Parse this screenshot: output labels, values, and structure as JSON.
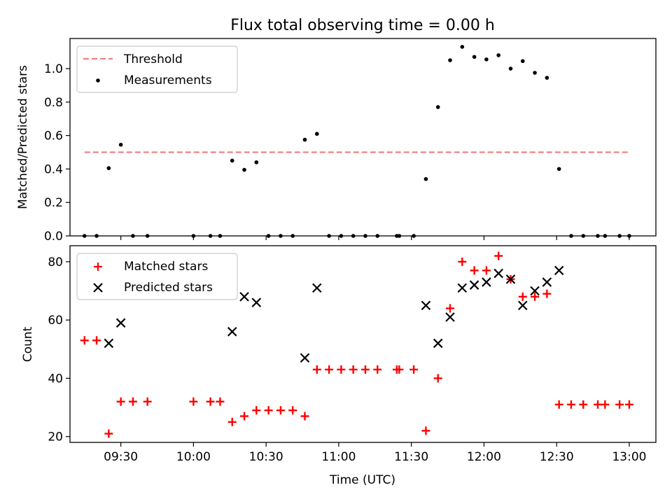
{
  "chart_data": [
    {
      "type": "scatter",
      "title": "Flux total observing time = 0.00 h",
      "xlabel": "",
      "ylabel": "Matched/Predicted stars",
      "xlim": [
        "09:09",
        "13:11"
      ],
      "ylim": [
        0.0,
        1.18
      ],
      "yticks": [
        "0.0",
        "0.2",
        "0.4",
        "0.6",
        "0.8",
        "1.0"
      ],
      "legend": {
        "position": "upper-left",
        "entries": [
          "Threshold",
          "Measurements"
        ]
      },
      "threshold": {
        "name": "Threshold",
        "color": "#f08080",
        "style": "dashed",
        "y": 0.5,
        "x_start": "09:15",
        "x_end": "13:00"
      },
      "series": [
        {
          "name": "Measurements",
          "color": "#000000",
          "marker": "dot",
          "points": [
            [
              "09:15",
              0.0
            ],
            [
              "09:20",
              0.0
            ],
            [
              "09:25",
              0.405
            ],
            [
              "09:30",
              0.545
            ],
            [
              "09:35",
              0.0
            ],
            [
              "09:41",
              0.0
            ],
            [
              "10:00",
              0.0
            ],
            [
              "10:07",
              0.0
            ],
            [
              "10:11",
              0.0
            ],
            [
              "10:16",
              0.45
            ],
            [
              "10:21",
              0.395
            ],
            [
              "10:26",
              0.44
            ],
            [
              "10:31",
              0.0
            ],
            [
              "10:36",
              0.0
            ],
            [
              "10:41",
              0.0
            ],
            [
              "10:46",
              0.575
            ],
            [
              "10:51",
              0.61
            ],
            [
              "10:56",
              0.0
            ],
            [
              "11:01",
              0.0
            ],
            [
              "11:06",
              0.0
            ],
            [
              "11:11",
              0.0
            ],
            [
              "11:16",
              0.0
            ],
            [
              "11:24",
              0.0
            ],
            [
              "11:25",
              0.0
            ],
            [
              "11:31",
              0.0
            ],
            [
              "11:36",
              0.34
            ],
            [
              "11:41",
              0.77
            ],
            [
              "11:46",
              1.05
            ],
            [
              "11:51",
              1.13
            ],
            [
              "11:56",
              1.07
            ],
            [
              "12:01",
              1.055
            ],
            [
              "12:06",
              1.08
            ],
            [
              "12:11",
              1.0
            ],
            [
              "12:16",
              1.045
            ],
            [
              "12:21",
              0.975
            ],
            [
              "12:26",
              0.945
            ],
            [
              "12:31",
              0.4
            ],
            [
              "12:36",
              0.0
            ],
            [
              "12:41",
              0.0
            ],
            [
              "12:47",
              0.0
            ],
            [
              "12:50",
              0.0
            ],
            [
              "12:56",
              0.0
            ],
            [
              "13:00",
              0.0
            ]
          ]
        }
      ]
    },
    {
      "type": "scatter",
      "title": "",
      "xlabel": "Time (UTC)",
      "ylabel": "Count",
      "xlim": [
        "09:09",
        "13:11"
      ],
      "ylim": [
        18,
        85.5
      ],
      "yticks": [
        "20",
        "40",
        "60",
        "80"
      ],
      "xticks": [
        "09:30",
        "10:00",
        "10:30",
        "11:00",
        "11:30",
        "12:00",
        "12:30",
        "13:00"
      ],
      "legend": {
        "position": "upper-left",
        "entries": [
          "Matched stars",
          "Predicted stars"
        ]
      },
      "series": [
        {
          "name": "Matched stars",
          "color": "#ff0000",
          "marker": "plus",
          "points": [
            [
              "09:15",
              53
            ],
            [
              "09:20",
              53
            ],
            [
              "09:25",
              21
            ],
            [
              "09:30",
              32
            ],
            [
              "09:35",
              32
            ],
            [
              "09:41",
              32
            ],
            [
              "10:00",
              32
            ],
            [
              "10:07",
              32
            ],
            [
              "10:11",
              32
            ],
            [
              "10:16",
              25
            ],
            [
              "10:21",
              27
            ],
            [
              "10:26",
              29
            ],
            [
              "10:31",
              29
            ],
            [
              "10:36",
              29
            ],
            [
              "10:41",
              29
            ],
            [
              "10:46",
              27
            ],
            [
              "10:51",
              43
            ],
            [
              "10:56",
              43
            ],
            [
              "11:01",
              43
            ],
            [
              "11:06",
              43
            ],
            [
              "11:11",
              43
            ],
            [
              "11:16",
              43
            ],
            [
              "11:24",
              43
            ],
            [
              "11:25",
              43
            ],
            [
              "11:31",
              43
            ],
            [
              "11:36",
              22
            ],
            [
              "11:41",
              40
            ],
            [
              "11:46",
              64
            ],
            [
              "11:51",
              80
            ],
            [
              "11:56",
              77
            ],
            [
              "12:01",
              77
            ],
            [
              "12:06",
              82
            ],
            [
              "12:11",
              74
            ],
            [
              "12:16",
              68
            ],
            [
              "12:21",
              68
            ],
            [
              "12:26",
              69
            ],
            [
              "12:31",
              31
            ],
            [
              "12:36",
              31
            ],
            [
              "12:41",
              31
            ],
            [
              "12:47",
              31
            ],
            [
              "12:50",
              31
            ],
            [
              "12:56",
              31
            ],
            [
              "13:00",
              31
            ]
          ]
        },
        {
          "name": "Predicted stars",
          "color": "#000000",
          "marker": "x",
          "points": [
            [
              "09:25",
              52
            ],
            [
              "09:30",
              59
            ],
            [
              "10:16",
              56
            ],
            [
              "10:21",
              68
            ],
            [
              "10:26",
              66
            ],
            [
              "10:46",
              47
            ],
            [
              "10:51",
              71
            ],
            [
              "11:36",
              65
            ],
            [
              "11:41",
              52
            ],
            [
              "11:46",
              61
            ],
            [
              "11:51",
              71
            ],
            [
              "11:56",
              72
            ],
            [
              "12:01",
              73
            ],
            [
              "12:06",
              76
            ],
            [
              "12:11",
              74
            ],
            [
              "12:16",
              65
            ],
            [
              "12:21",
              70
            ],
            [
              "12:26",
              73
            ],
            [
              "12:31",
              77
            ]
          ]
        }
      ]
    }
  ]
}
